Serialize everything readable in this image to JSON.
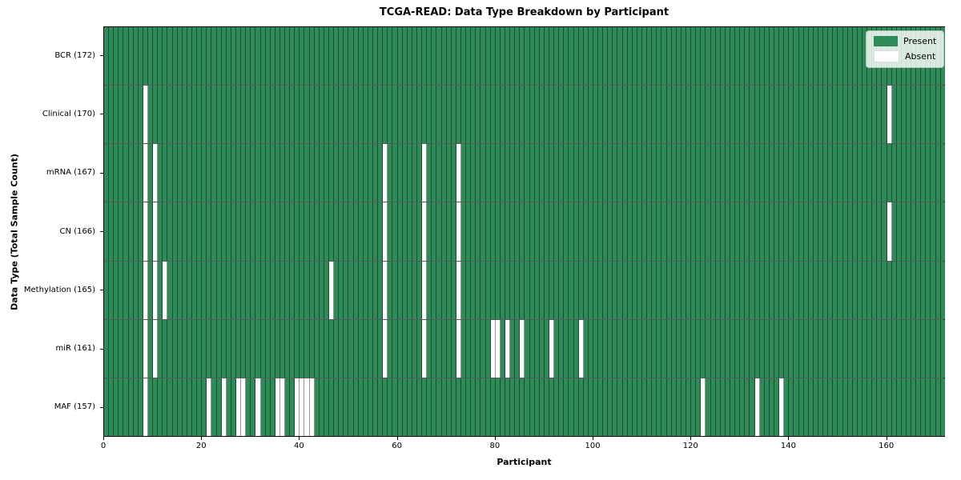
{
  "figure": {
    "title": "TCGA-READ: Data Type Breakdown by Participant",
    "xlabel": "Participant",
    "ylabel": "Data Type (Total Sample Count)"
  },
  "legend": {
    "items": [
      {
        "label": "Present",
        "color": "#2e8b57"
      },
      {
        "label": "Absent",
        "color": "#ffffff"
      }
    ]
  },
  "chart_data": {
    "type": "heatmap",
    "title": "TCGA-READ: Data Type Breakdown by Participant",
    "xlabel": "Participant",
    "ylabel": "Data Type (Total Sample Count)",
    "n_participants": 172,
    "x_range": [
      0,
      172
    ],
    "x_ticks": [
      0,
      20,
      40,
      60,
      80,
      100,
      120,
      140,
      160
    ],
    "grid": "cell-edges",
    "legend_position": "upper-right",
    "colors": {
      "present": "#2e8b57",
      "absent": "#ffffff",
      "cell_edge": "rgba(0,0,0,0.42)"
    },
    "rows": [
      {
        "label": "BCR (172)",
        "data_type": "BCR",
        "total": 172,
        "absent_participants": []
      },
      {
        "label": "Clinical (170)",
        "data_type": "Clinical",
        "total": 170,
        "absent_participants": [
          8,
          160
        ]
      },
      {
        "label": "mRNA (167)",
        "data_type": "mRNA",
        "total": 167,
        "absent_participants": [
          8,
          10,
          57,
          65,
          72
        ]
      },
      {
        "label": "CN (166)",
        "data_type": "CN",
        "total": 166,
        "absent_participants": [
          8,
          10,
          57,
          65,
          72,
          160
        ]
      },
      {
        "label": "Methylation (165)",
        "data_type": "Methylation",
        "total": 165,
        "absent_participants": [
          8,
          10,
          12,
          46,
          57,
          65,
          72
        ]
      },
      {
        "label": "miR (161)",
        "data_type": "miR",
        "total": 161,
        "absent_participants": [
          8,
          10,
          57,
          65,
          72,
          79,
          80,
          82,
          85,
          91,
          97
        ]
      },
      {
        "label": "MAF (157)",
        "data_type": "MAF",
        "total": 157,
        "absent_participants": [
          8,
          21,
          24,
          27,
          28,
          31,
          35,
          36,
          39,
          40,
          41,
          42,
          122,
          133,
          138
        ]
      }
    ]
  }
}
